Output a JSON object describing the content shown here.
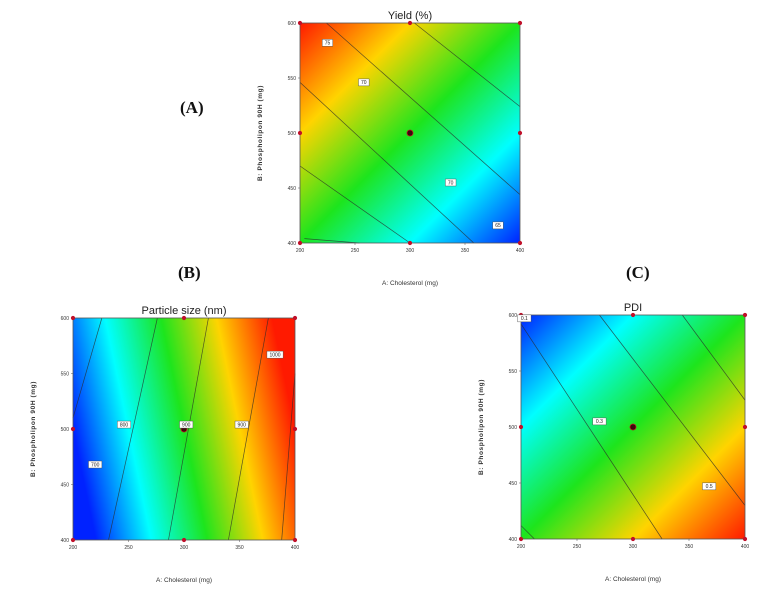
{
  "panels": [
    {
      "letter": "(A)"
    },
    {
      "letter": "(B)"
    },
    {
      "letter": "(C)"
    }
  ],
  "chart_data": [
    {
      "type": "heatmap",
      "id": "A",
      "title": "Yield (%)",
      "xlabel": "A: Cholesterol (mg)",
      "ylabel": "B: Phospholipon 90H (mg)",
      "xticks": [
        "200",
        "250",
        "300",
        "350",
        "400"
      ],
      "yticks": [
        "400",
        "450",
        "500",
        "550",
        "600"
      ],
      "xlim": [
        200,
        400
      ],
      "ylim": [
        400,
        600
      ],
      "colors": [
        "#ff1a00",
        "#ffd400",
        "#1de51d",
        "#00ffff",
        "#0022ff"
      ],
      "contour_labels": [
        {
          "text": "75",
          "x": 225,
          "y": 582
        },
        {
          "text": "70",
          "x": 258,
          "y": 546
        },
        {
          "text": "70",
          "x": 337,
          "y": 455
        },
        {
          "text": "65",
          "x": 380,
          "y": 416
        }
      ],
      "design_points": [
        [
          200,
          400
        ],
        [
          300,
          400
        ],
        [
          400,
          400
        ],
        [
          200,
          500
        ],
        [
          300,
          500
        ],
        [
          400,
          500
        ],
        [
          200,
          600
        ],
        [
          300,
          600
        ],
        [
          400,
          600
        ]
      ],
      "center_point": [
        300,
        500
      ]
    },
    {
      "type": "heatmap",
      "id": "B",
      "title": "Particle size (nm)",
      "xlabel": "A: Cholesterol (mg)",
      "ylabel": "B: Phospholipon 90H (mg)",
      "xticks": [
        "200",
        "250",
        "300",
        "350",
        "400"
      ],
      "yticks": [
        "400",
        "450",
        "500",
        "550",
        "600"
      ],
      "xlim": [
        200,
        400
      ],
      "ylim": [
        400,
        600
      ],
      "colors": [
        "#0022ff",
        "#00ffff",
        "#1de51d",
        "#ffd400",
        "#ff1a00"
      ],
      "contour_labels": [
        {
          "text": "700",
          "x": 220,
          "y": 468
        },
        {
          "text": "800",
          "x": 246,
          "y": 504
        },
        {
          "text": "900",
          "x": 302,
          "y": 504
        },
        {
          "text": "900",
          "x": 352,
          "y": 504
        },
        {
          "text": "1000",
          "x": 382,
          "y": 567
        }
      ],
      "design_points": [
        [
          200,
          400
        ],
        [
          300,
          400
        ],
        [
          400,
          400
        ],
        [
          200,
          500
        ],
        [
          300,
          500
        ],
        [
          400,
          500
        ],
        [
          200,
          600
        ],
        [
          300,
          600
        ],
        [
          400,
          600
        ]
      ],
      "center_point": [
        300,
        500
      ]
    },
    {
      "type": "heatmap",
      "id": "C",
      "title": "PDI",
      "xlabel": "A: Cholesterol (mg)",
      "ylabel": "B: Phospholipon 90H (mg)",
      "xticks": [
        "200",
        "250",
        "300",
        "350",
        "400"
      ],
      "yticks": [
        "400",
        "450",
        "500",
        "550",
        "600"
      ],
      "xlim": [
        200,
        400
      ],
      "ylim": [
        400,
        600
      ],
      "colors": [
        "#0022ff",
        "#00ffff",
        "#1de51d",
        "#ffd400",
        "#ff1a00"
      ],
      "contour_labels": [
        {
          "text": "0.1",
          "x": 203,
          "y": 597
        },
        {
          "text": "0.3",
          "x": 270,
          "y": 505
        },
        {
          "text": "0.5",
          "x": 368,
          "y": 447
        }
      ],
      "design_points": [
        [
          200,
          400
        ],
        [
          300,
          400
        ],
        [
          400,
          400
        ],
        [
          200,
          500
        ],
        [
          300,
          500
        ],
        [
          400,
          500
        ],
        [
          200,
          600
        ],
        [
          300,
          600
        ],
        [
          400,
          600
        ]
      ],
      "center_point": [
        300,
        500
      ]
    }
  ]
}
